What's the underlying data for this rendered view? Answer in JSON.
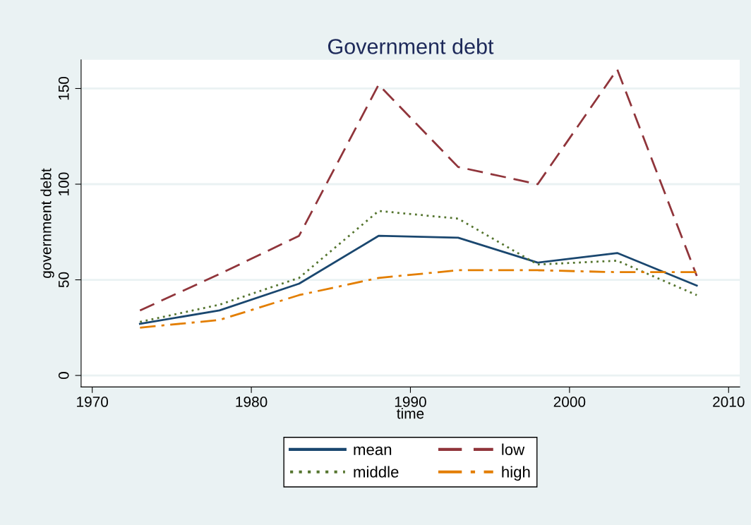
{
  "chart_data": {
    "type": "line",
    "title": "Government debt",
    "xlabel": "time",
    "ylabel": "government debt",
    "x": [
      1973,
      1978,
      1983,
      1988,
      1993,
      1998,
      2003,
      2008
    ],
    "series": [
      {
        "name": "mean",
        "color": "#1a476f",
        "line_style": "solid",
        "values": [
          27,
          34,
          48,
          73,
          72,
          59,
          64,
          47
        ]
      },
      {
        "name": "low",
        "color": "#90353b",
        "line_style": "dashed",
        "values": [
          34,
          53,
          73,
          152,
          109,
          100,
          160,
          52
        ]
      },
      {
        "name": "middle",
        "color": "#55752f",
        "line_style": "dotted",
        "values": [
          28,
          37,
          51,
          86,
          82,
          58,
          60,
          42
        ]
      },
      {
        "name": "high",
        "color": "#e37e00",
        "line_style": "dashdot",
        "values": [
          25,
          29,
          42,
          51,
          55,
          55,
          54,
          54
        ]
      }
    ],
    "xlim": [
      1969.3,
      2010.7
    ],
    "ylim": [
      -6,
      165
    ],
    "xticks": [
      1970,
      1980,
      1990,
      2000,
      2010
    ],
    "yticks": [
      0,
      50,
      100,
      150
    ],
    "grid": "y",
    "legend": "bottom",
    "marker": "none"
  }
}
